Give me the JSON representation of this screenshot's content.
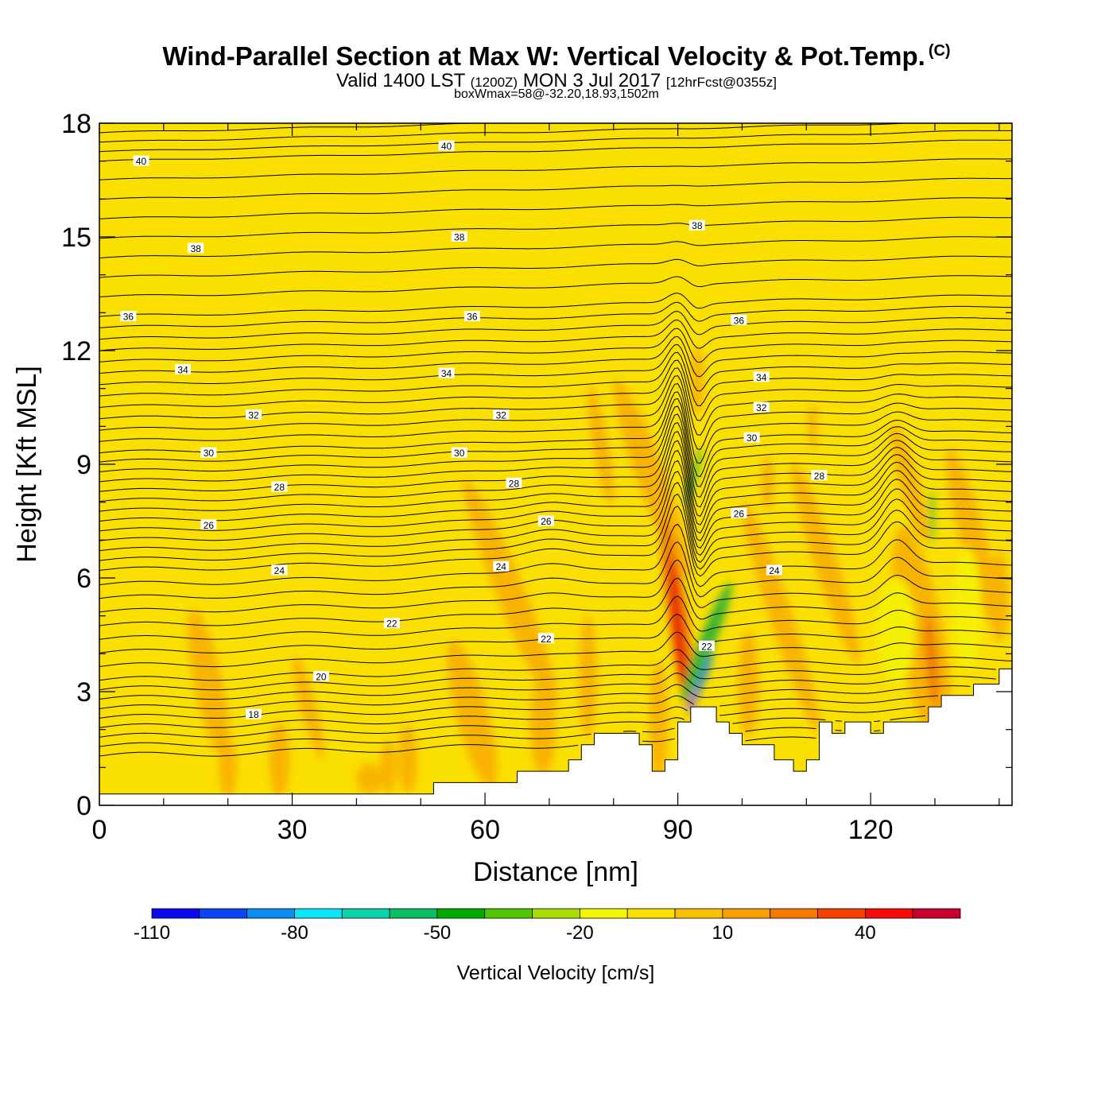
{
  "header": {
    "title": "Wind-Parallel Section at Max W: Vertical Velocity & Pot.Temp.",
    "copyright": "(C)",
    "valid_prefix": "Valid 1400 LST",
    "valid_utc": "(1200Z)",
    "valid_date": "MON 3 Jul 2017",
    "forecast": "[12hrFcst@0355z]",
    "box_info": "boxWmax=58@-32.20,18.93,1502m"
  },
  "colors": {
    "fill_default": "#fae000",
    "updraft_orange": "#f8b400",
    "strong_orange": "#f08000",
    "red": "#e81400",
    "green": "#3cb432",
    "blue": "#0078ff",
    "contour": "#000000"
  },
  "chart_data": {
    "type": "heatmap",
    "xlabel": "Distance [nm]",
    "ylabel": "Height [Kft MSL]",
    "xlim": [
      0,
      142
    ],
    "ylim": [
      0,
      18
    ],
    "xticks": [
      0,
      30,
      60,
      90,
      120
    ],
    "yticks": [
      0,
      3,
      6,
      9,
      12,
      15,
      18
    ],
    "terrain": [
      [
        0,
        0.3
      ],
      [
        52,
        0.3
      ],
      [
        52,
        0.6
      ],
      [
        60,
        0.6
      ],
      [
        60,
        0.6
      ],
      [
        65,
        0.6
      ],
      [
        65,
        0.9
      ],
      [
        73,
        0.9
      ],
      [
        73,
        1.2
      ],
      [
        75,
        1.2
      ],
      [
        75,
        1.6
      ],
      [
        77,
        1.6
      ],
      [
        77,
        1.9
      ],
      [
        84,
        1.9
      ],
      [
        84,
        1.6
      ],
      [
        86,
        1.6
      ],
      [
        86,
        0.9
      ],
      [
        88,
        0.9
      ],
      [
        88,
        1.2
      ],
      [
        90,
        1.2
      ],
      [
        90,
        2.2
      ],
      [
        92,
        2.2
      ],
      [
        92,
        2.6
      ],
      [
        96,
        2.6
      ],
      [
        96,
        2.2
      ],
      [
        98,
        2.2
      ],
      [
        98,
        1.9
      ],
      [
        100,
        1.9
      ],
      [
        100,
        1.6
      ],
      [
        102,
        1.6
      ],
      [
        102,
        1.6
      ],
      [
        105,
        1.6
      ],
      [
        105,
        1.2
      ],
      [
        108,
        1.2
      ],
      [
        108,
        0.9
      ],
      [
        110,
        0.9
      ],
      [
        110,
        1.2
      ],
      [
        112,
        1.2
      ],
      [
        112,
        2.2
      ],
      [
        114,
        2.2
      ],
      [
        114,
        1.9
      ],
      [
        116,
        1.9
      ],
      [
        116,
        2.2
      ],
      [
        120,
        2.2
      ],
      [
        120,
        1.9
      ],
      [
        122,
        1.9
      ],
      [
        122,
        2.2
      ],
      [
        129,
        2.2
      ],
      [
        129,
        2.6
      ],
      [
        131,
        2.6
      ],
      [
        131,
        2.9
      ],
      [
        136,
        2.9
      ],
      [
        136,
        3.2
      ],
      [
        140,
        3.2
      ],
      [
        140,
        3.6
      ],
      [
        142,
        3.6
      ],
      [
        142,
        0
      ]
    ],
    "theta_contours": [
      {
        "label": "18",
        "level": 18.0
      },
      {
        "label": "20",
        "level": 20.0
      },
      {
        "label": "22",
        "level": 22.0
      },
      {
        "label": "24",
        "level": 24.0
      },
      {
        "label": "26",
        "level": 26.0
      },
      {
        "label": "28",
        "level": 28.0
      },
      {
        "label": "30",
        "level": 30.0
      },
      {
        "label": "32",
        "level": 32.0
      },
      {
        "label": "34",
        "level": 34.0
      },
      {
        "label": "36",
        "level": 36.0
      },
      {
        "label": "38",
        "level": 38.0
      },
      {
        "label": "40",
        "level": 40.0
      }
    ],
    "contour_labels": [
      {
        "text": "40",
        "x": 6.5,
        "y": 17.0
      },
      {
        "text": "40",
        "x": 54,
        "y": 17.4
      },
      {
        "text": "38",
        "x": 15,
        "y": 14.7
      },
      {
        "text": "38",
        "x": 56,
        "y": 15.0
      },
      {
        "text": "38",
        "x": 93,
        "y": 15.3
      },
      {
        "text": "36",
        "x": 4.5,
        "y": 12.9
      },
      {
        "text": "36",
        "x": 58,
        "y": 12.9
      },
      {
        "text": "36",
        "x": 99.5,
        "y": 12.8
      },
      {
        "text": "34",
        "x": 13,
        "y": 11.5
      },
      {
        "text": "34",
        "x": 54,
        "y": 11.4
      },
      {
        "text": "34",
        "x": 103,
        "y": 11.3
      },
      {
        "text": "32",
        "x": 24,
        "y": 10.3
      },
      {
        "text": "32",
        "x": 62.5,
        "y": 10.3
      },
      {
        "text": "32",
        "x": 103,
        "y": 10.5
      },
      {
        "text": "30",
        "x": 17,
        "y": 9.3
      },
      {
        "text": "30",
        "x": 56,
        "y": 9.3
      },
      {
        "text": "30",
        "x": 101.5,
        "y": 9.7
      },
      {
        "text": "28",
        "x": 28,
        "y": 8.4
      },
      {
        "text": "28",
        "x": 64.5,
        "y": 8.5
      },
      {
        "text": "28",
        "x": 112,
        "y": 8.7
      },
      {
        "text": "26",
        "x": 17,
        "y": 7.4
      },
      {
        "text": "26",
        "x": 69.5,
        "y": 7.5
      },
      {
        "text": "26",
        "x": 99.5,
        "y": 7.7
      },
      {
        "text": "24",
        "x": 28,
        "y": 6.2
      },
      {
        "text": "24",
        "x": 62.5,
        "y": 6.3
      },
      {
        "text": "24",
        "x": 105,
        "y": 6.2
      },
      {
        "text": "22",
        "x": 45.5,
        "y": 4.8
      },
      {
        "text": "22",
        "x": 69.5,
        "y": 4.4
      },
      {
        "text": "22",
        "x": 94.5,
        "y": 4.2
      },
      {
        "text": "20",
        "x": 34.5,
        "y": 3.4
      },
      {
        "text": "18",
        "x": 24,
        "y": 2.4
      }
    ],
    "updraft_regions": [
      {
        "level": "orange",
        "x": 17,
        "y": 3.2,
        "rx": 2.2,
        "ry": 2.0,
        "tilt": -12
      },
      {
        "level": "orange",
        "x": 20,
        "y": 1.0,
        "rx": 1.4,
        "ry": 0.8,
        "tilt": 0
      },
      {
        "level": "orange",
        "x": 28,
        "y": 1.2,
        "rx": 1.6,
        "ry": 1.0,
        "tilt": 0
      },
      {
        "level": "orange",
        "x": 32.5,
        "y": 2.6,
        "rx": 1.2,
        "ry": 1.4,
        "tilt": -15
      },
      {
        "level": "orange",
        "x": 42,
        "y": 0.7,
        "rx": 2.0,
        "ry": 0.4,
        "tilt": 0
      },
      {
        "level": "orange",
        "x": 45,
        "y": 1.0,
        "rx": 1.2,
        "ry": 0.7,
        "tilt": 0
      },
      {
        "level": "orange",
        "x": 48,
        "y": 1.2,
        "rx": 1.5,
        "ry": 0.9,
        "tilt": 0
      },
      {
        "level": "orange",
        "x": 58,
        "y": 2.4,
        "rx": 2.5,
        "ry": 2.0,
        "tilt": -15
      },
      {
        "level": "orange",
        "x": 64,
        "y": 5.6,
        "rx": 2.2,
        "ry": 3.2,
        "tilt": -22
      },
      {
        "level": "orange",
        "x": 69,
        "y": 2.1,
        "rx": 2.0,
        "ry": 1.3,
        "tilt": 0
      },
      {
        "level": "orange",
        "x": 76,
        "y": 3.4,
        "rx": 1.4,
        "ry": 1.6,
        "tilt": 0
      },
      {
        "level": "orange",
        "x": 78,
        "y": 9.5,
        "rx": 1.2,
        "ry": 1.6,
        "tilt": -10
      },
      {
        "level": "orange",
        "x": 86,
        "y": 8.6,
        "rx": 2.2,
        "ry": 2.8,
        "tilt": -20
      },
      {
        "level": "orange",
        "x": 87,
        "y": 2.2,
        "rx": 1.4,
        "ry": 1.6,
        "tilt": 0
      },
      {
        "level": "orange",
        "x": 93,
        "y": 11.2,
        "rx": 1.0,
        "ry": 0.9,
        "tilt": 0
      },
      {
        "level": "orange",
        "x": 101,
        "y": 3.2,
        "rx": 1.6,
        "ry": 1.4,
        "tilt": 0
      },
      {
        "level": "orange",
        "x": 106,
        "y": 5.0,
        "rx": 1.8,
        "ry": 3.2,
        "tilt": -18
      },
      {
        "level": "orange",
        "x": 104,
        "y": 8.5,
        "rx": 1.0,
        "ry": 0.7,
        "tilt": 0
      },
      {
        "level": "orange",
        "x": 111,
        "y": 10.0,
        "rx": 0.7,
        "ry": 0.6,
        "tilt": 0
      },
      {
        "level": "orange",
        "x": 113,
        "y": 6.4,
        "rx": 1.8,
        "ry": 2.8,
        "tilt": -18
      },
      {
        "level": "orange",
        "x": 128,
        "y": 4.4,
        "rx": 3.5,
        "ry": 3.0,
        "tilt": -10
      },
      {
        "level": "orange",
        "x": 136,
        "y": 7.0,
        "rx": 2.0,
        "ry": 2.5,
        "tilt": -15
      },
      {
        "level": "orange",
        "x": 126,
        "y": 8.5,
        "rx": 1.5,
        "ry": 1.6,
        "tilt": -15
      },
      {
        "level": "orange",
        "x": 140,
        "y": 5.5,
        "rx": 1.5,
        "ry": 1.2,
        "tilt": 0
      },
      {
        "level": "yellow",
        "x": 124,
        "y": 4.6,
        "rx": 3.0,
        "ry": 1.4,
        "tilt": 0
      },
      {
        "level": "yellow",
        "x": 135,
        "y": 5.2,
        "rx": 2.2,
        "ry": 1.6,
        "tilt": 0
      },
      {
        "level": "strong",
        "x": 90,
        "y": 5.0,
        "rx": 1.6,
        "ry": 2.6,
        "tilt": -8
      },
      {
        "level": "strong",
        "x": 129.5,
        "y": 3.8,
        "rx": 1.0,
        "ry": 1.2,
        "tilt": -5
      },
      {
        "level": "red",
        "x": 90,
        "y": 4.7,
        "rx": 0.8,
        "ry": 1.9,
        "tilt": -6
      },
      {
        "level": "green",
        "x": 94.5,
        "y": 4.3,
        "rx": 1.2,
        "ry": 1.7,
        "tilt": 22
      },
      {
        "level": "green",
        "x": 92.5,
        "y": 8.7,
        "rx": 0.4,
        "ry": 0.8,
        "tilt": 15
      },
      {
        "level": "green",
        "x": 129.5,
        "y": 7.6,
        "rx": 0.3,
        "ry": 0.7,
        "tilt": 0
      },
      {
        "level": "blue",
        "x": 93.5,
        "y": 3.2,
        "rx": 0.4,
        "ry": 0.9,
        "tilt": 22
      }
    ],
    "colorbar": {
      "title": "Vertical Velocity [cm/s]",
      "bins": [
        "#0a0af0",
        "#0a46f5",
        "#0a8cf5",
        "#0ae6f5",
        "#0ad2aa",
        "#0abe64",
        "#00aa00",
        "#50c800",
        "#aadc00",
        "#f5f500",
        "#fae000",
        "#f8c000",
        "#f8a000",
        "#f87800",
        "#f84000",
        "#f80a0a",
        "#c8002d"
      ],
      "labels": [
        "-110",
        "-80",
        "-50",
        "-20",
        "10",
        "40"
      ],
      "label_bins": [
        0,
        3,
        6,
        9,
        12,
        15
      ]
    }
  }
}
